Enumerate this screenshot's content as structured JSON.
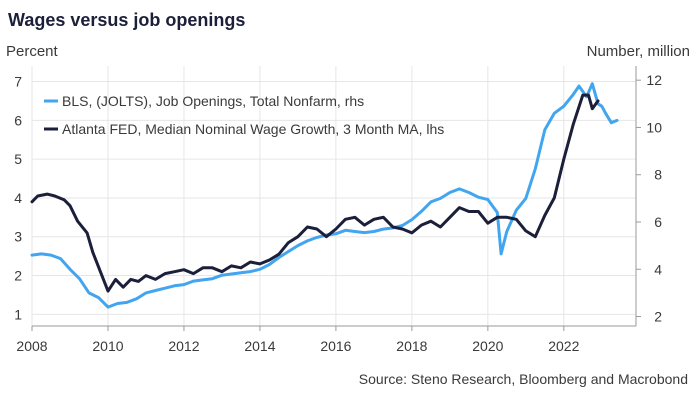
{
  "chart_data": {
    "type": "line",
    "title": "Wages versus job openings",
    "left_axis_label": "Percent",
    "right_axis_label": "Number, million",
    "source": "Source: Steno Research, Bloomberg and Macrobond",
    "legend_position": "top-left",
    "grid": true,
    "x_ticks": [
      "2008",
      "2010",
      "2012",
      "2014",
      "2016",
      "2018",
      "2020",
      "2022"
    ],
    "xlim": [
      2008,
      2023.9
    ],
    "y_left_ticks": [
      "1",
      "2",
      "3",
      "4",
      "5",
      "6",
      "7"
    ],
    "ylim_left": [
      0.7,
      7.4
    ],
    "y_right_ticks": [
      "2",
      "4",
      "6",
      "8",
      "10",
      "12"
    ],
    "ylim_right": [
      1.6,
      12.6
    ],
    "series": [
      {
        "name": "BLS, (JOLTS), Job Openings, Total Nonfarm, rhs",
        "axis": "right",
        "color": "#42a5f0",
        "points": [
          [
            2008.0,
            4.6
          ],
          [
            2008.25,
            4.65
          ],
          [
            2008.5,
            4.6
          ],
          [
            2008.75,
            4.45
          ],
          [
            2009.0,
            4.0
          ],
          [
            2009.25,
            3.6
          ],
          [
            2009.5,
            3.0
          ],
          [
            2009.75,
            2.8
          ],
          [
            2010.0,
            2.4
          ],
          [
            2010.25,
            2.55
          ],
          [
            2010.5,
            2.6
          ],
          [
            2010.75,
            2.75
          ],
          [
            2011.0,
            3.0
          ],
          [
            2011.25,
            3.1
          ],
          [
            2011.5,
            3.2
          ],
          [
            2011.75,
            3.3
          ],
          [
            2012.0,
            3.35
          ],
          [
            2012.25,
            3.5
          ],
          [
            2012.5,
            3.55
          ],
          [
            2012.75,
            3.6
          ],
          [
            2013.0,
            3.75
          ],
          [
            2013.25,
            3.8
          ],
          [
            2013.5,
            3.85
          ],
          [
            2013.75,
            3.9
          ],
          [
            2014.0,
            4.0
          ],
          [
            2014.25,
            4.2
          ],
          [
            2014.5,
            4.5
          ],
          [
            2014.75,
            4.75
          ],
          [
            2015.0,
            5.0
          ],
          [
            2015.25,
            5.2
          ],
          [
            2015.5,
            5.35
          ],
          [
            2015.75,
            5.45
          ],
          [
            2016.0,
            5.5
          ],
          [
            2016.25,
            5.65
          ],
          [
            2016.5,
            5.6
          ],
          [
            2016.75,
            5.55
          ],
          [
            2017.0,
            5.6
          ],
          [
            2017.25,
            5.7
          ],
          [
            2017.5,
            5.75
          ],
          [
            2017.75,
            5.85
          ],
          [
            2018.0,
            6.1
          ],
          [
            2018.25,
            6.45
          ],
          [
            2018.5,
            6.85
          ],
          [
            2018.75,
            7.0
          ],
          [
            2019.0,
            7.25
          ],
          [
            2019.25,
            7.4
          ],
          [
            2019.5,
            7.25
          ],
          [
            2019.75,
            7.05
          ],
          [
            2020.0,
            6.95
          ],
          [
            2020.25,
            6.4
          ],
          [
            2020.35,
            4.65
          ],
          [
            2020.5,
            5.6
          ],
          [
            2020.75,
            6.5
          ],
          [
            2021.0,
            7.0
          ],
          [
            2021.25,
            8.25
          ],
          [
            2021.5,
            9.9
          ],
          [
            2021.75,
            10.6
          ],
          [
            2022.0,
            10.9
          ],
          [
            2022.25,
            11.4
          ],
          [
            2022.4,
            11.75
          ],
          [
            2022.6,
            11.3
          ],
          [
            2022.75,
            11.85
          ],
          [
            2022.9,
            11.0
          ],
          [
            2023.0,
            10.9
          ],
          [
            2023.1,
            10.6
          ],
          [
            2023.25,
            10.2
          ],
          [
            2023.4,
            10.3
          ]
        ]
      },
      {
        "name": "Atlanta FED, Median Nominal Wage Growth, 3 Month MA, lhs",
        "axis": "left",
        "color": "#1b1f3a",
        "points": [
          [
            2008.0,
            3.9
          ],
          [
            2008.15,
            4.05
          ],
          [
            2008.4,
            4.1
          ],
          [
            2008.6,
            4.05
          ],
          [
            2008.85,
            3.95
          ],
          [
            2009.0,
            3.8
          ],
          [
            2009.2,
            3.4
          ],
          [
            2009.45,
            3.1
          ],
          [
            2009.6,
            2.6
          ],
          [
            2009.8,
            2.1
          ],
          [
            2010.0,
            1.6
          ],
          [
            2010.2,
            1.9
          ],
          [
            2010.4,
            1.7
          ],
          [
            2010.6,
            1.9
          ],
          [
            2010.8,
            1.85
          ],
          [
            2011.0,
            2.0
          ],
          [
            2011.25,
            1.9
          ],
          [
            2011.5,
            2.05
          ],
          [
            2011.75,
            2.1
          ],
          [
            2012.0,
            2.15
          ],
          [
            2012.25,
            2.05
          ],
          [
            2012.5,
            2.2
          ],
          [
            2012.75,
            2.2
          ],
          [
            2013.0,
            2.1
          ],
          [
            2013.25,
            2.25
          ],
          [
            2013.5,
            2.2
          ],
          [
            2013.75,
            2.35
          ],
          [
            2014.0,
            2.3
          ],
          [
            2014.25,
            2.4
          ],
          [
            2014.5,
            2.55
          ],
          [
            2014.75,
            2.85
          ],
          [
            2015.0,
            3.0
          ],
          [
            2015.25,
            3.25
          ],
          [
            2015.5,
            3.2
          ],
          [
            2015.75,
            3.0
          ],
          [
            2016.0,
            3.2
          ],
          [
            2016.25,
            3.45
          ],
          [
            2016.5,
            3.5
          ],
          [
            2016.75,
            3.3
          ],
          [
            2017.0,
            3.45
          ],
          [
            2017.25,
            3.5
          ],
          [
            2017.5,
            3.25
          ],
          [
            2017.75,
            3.2
          ],
          [
            2018.0,
            3.1
          ],
          [
            2018.25,
            3.3
          ],
          [
            2018.5,
            3.4
          ],
          [
            2018.75,
            3.25
          ],
          [
            2019.0,
            3.5
          ],
          [
            2019.25,
            3.75
          ],
          [
            2019.5,
            3.65
          ],
          [
            2019.75,
            3.65
          ],
          [
            2020.0,
            3.35
          ],
          [
            2020.25,
            3.5
          ],
          [
            2020.5,
            3.5
          ],
          [
            2020.75,
            3.45
          ],
          [
            2021.0,
            3.15
          ],
          [
            2021.25,
            3.0
          ],
          [
            2021.5,
            3.55
          ],
          [
            2021.75,
            4.0
          ],
          [
            2022.0,
            5.0
          ],
          [
            2022.25,
            5.9
          ],
          [
            2022.5,
            6.65
          ],
          [
            2022.65,
            6.65
          ],
          [
            2022.75,
            6.3
          ],
          [
            2022.9,
            6.5
          ]
        ]
      }
    ]
  }
}
